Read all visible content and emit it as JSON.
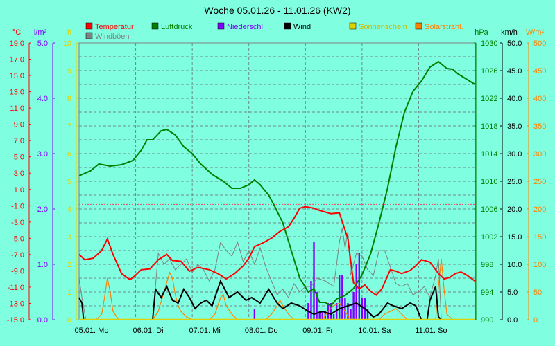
{
  "chart_data": {
    "type": "line",
    "title": "Woche 05.01.26 - 11.01.26 (KW2)",
    "legend": [
      {
        "label": "Temperatur",
        "color": "#ff0000"
      },
      {
        "label": "Luftdruck",
        "color": "#008000"
      },
      {
        "label": "Niederschl.",
        "color": "#8000ff"
      },
      {
        "label": "Wind",
        "color": "#000000"
      },
      {
        "label": "Sonnenschein",
        "color": "#e0d000"
      },
      {
        "label": "Solarstrahl.",
        "color": "#ff8000"
      },
      {
        "label": "Windböen",
        "color": "#808080"
      }
    ],
    "axes": {
      "temperature": {
        "unit": "°C",
        "color": "#ff0000",
        "ylim": [
          -15,
          21
        ],
        "ticks": [
          "19.0",
          "17.0",
          "15.0",
          "13.0",
          "11.0",
          "9.0",
          "7.0",
          "5.0",
          "3.0",
          "1.0",
          "-1.0",
          "-3.0",
          "-5.0",
          "-7.0",
          "-9.0",
          "-11.0",
          "-13.0",
          "-15.0"
        ]
      },
      "precipitation": {
        "unit": "l/m²",
        "color": "#8000ff",
        "ylim": [
          0,
          5
        ],
        "ticks": [
          "5.0",
          "4.0",
          "3.0",
          "2.0",
          "1.0",
          "0.0"
        ]
      },
      "sunshine": {
        "unit": "h",
        "color": "#e0d000",
        "ylim": [
          0,
          10
        ],
        "ticks": [
          "10",
          "9",
          "8",
          "7",
          "6",
          "5",
          "4",
          "3",
          "2",
          "1",
          "0"
        ]
      },
      "pressure": {
        "unit": "hPa",
        "color": "#008000",
        "ylim": [
          990,
          1030
        ],
        "ticks": [
          "1030",
          "1026",
          "1022",
          "1018",
          "1014",
          "1010",
          "1006",
          "1002",
          "998",
          "994",
          "990"
        ]
      },
      "wind": {
        "unit": "km/h",
        "color": "#000000",
        "ylim": [
          0,
          50
        ],
        "ticks": [
          "50.0",
          "45.0",
          "40.0",
          "35.0",
          "30.0",
          "25.0",
          "20.0",
          "15.0",
          "10.0",
          "5.0",
          "0.0"
        ]
      },
      "solar": {
        "unit": "W/m²",
        "color": "#ff8000",
        "ylim": [
          0,
          500
        ],
        "ticks": [
          "500",
          "450",
          "400",
          "350",
          "300",
          "250",
          "200",
          "150",
          "100",
          "50",
          "0"
        ]
      }
    },
    "x_ticks": [
      "05.01. Mo",
      "06.01. Di",
      "07.01. Mi",
      "08.01. Do",
      "09.01. Fr",
      "10.01. Sa",
      "11.01. So"
    ],
    "x_range_days": [
      0,
      7
    ],
    "grid": true,
    "series": {
      "temperature": {
        "x": [
          0,
          0.1,
          0.25,
          0.4,
          0.5,
          0.6,
          0.75,
          0.9,
          1.0,
          1.1,
          1.25,
          1.4,
          1.55,
          1.65,
          1.8,
          1.95,
          2.1,
          2.3,
          2.45,
          2.6,
          2.75,
          2.9,
          3.0,
          3.1,
          3.25,
          3.4,
          3.55,
          3.7,
          3.8,
          3.9,
          4.0,
          4.15,
          4.25,
          4.35,
          4.45,
          4.6,
          4.75,
          4.85,
          4.95,
          5.05,
          5.15,
          5.25,
          5.35,
          5.5,
          5.6,
          5.7,
          5.85,
          5.95,
          6.05,
          6.2,
          6.35,
          6.45,
          6.55,
          6.65,
          6.75,
          6.85,
          7.0
        ],
        "values": [
          -6.5,
          -7.2,
          -7.0,
          -6.0,
          -4.5,
          -6.5,
          -9.0,
          -9.8,
          -9.2,
          -8.5,
          -8.4,
          -7.2,
          -6.5,
          -7.3,
          -7.4,
          -8.7,
          -8.2,
          -8.5,
          -9.0,
          -9.7,
          -9.0,
          -8.0,
          -7.0,
          -5.5,
          -5.0,
          -4.4,
          -3.5,
          -2.9,
          -1.8,
          -0.5,
          -0.3,
          -0.5,
          -0.8,
          -1.0,
          -1.2,
          -1.1,
          -4.5,
          -10.2,
          -11.0,
          -10.5,
          -11.3,
          -11.8,
          -11.0,
          -8.5,
          -8.7,
          -9.0,
          -8.6,
          -8.0,
          -7.2,
          -7.5,
          -9.0,
          -9.7,
          -9.5,
          -9.0,
          -8.8,
          -9.2,
          -10.0
        ]
      },
      "pressure": {
        "x": [
          0,
          0.2,
          0.35,
          0.55,
          0.75,
          0.95,
          1.1,
          1.2,
          1.3,
          1.45,
          1.55,
          1.7,
          1.85,
          2.0,
          2.15,
          2.35,
          2.55,
          2.7,
          2.85,
          3.0,
          3.1,
          3.2,
          3.35,
          3.45,
          3.6,
          3.75,
          3.9,
          4.05,
          4.15,
          4.25,
          4.35,
          4.45,
          4.55,
          4.7,
          4.85,
          5.0,
          5.15,
          5.3,
          5.45,
          5.6,
          5.75,
          5.9,
          6.05,
          6.2,
          6.35,
          6.5,
          6.6,
          6.7,
          6.8,
          6.9,
          7.0
        ],
        "values": [
          1010.8,
          1011.5,
          1012.5,
          1012.2,
          1012.4,
          1013.0,
          1014.5,
          1016.0,
          1016.0,
          1017.3,
          1017.5,
          1016.7,
          1015.0,
          1014.0,
          1012.5,
          1011.0,
          1010.0,
          1009.0,
          1009.0,
          1009.5,
          1010.2,
          1009.5,
          1008.0,
          1006.5,
          1004.0,
          1000.0,
          996.0,
          994.0,
          994.5,
          992.5,
          992.5,
          992.0,
          993.0,
          993.5,
          994.5,
          996.5,
          999.5,
          1004.0,
          1009.0,
          1015.0,
          1020.0,
          1023.0,
          1024.5,
          1026.5,
          1027.3,
          1026.3,
          1026.2,
          1025.5,
          1025.0,
          1024.5,
          1024.0
        ]
      },
      "wind": {
        "x": [
          0,
          0.05,
          0.08,
          0.1,
          1.3,
          1.35,
          1.45,
          1.55,
          1.65,
          1.75,
          1.85,
          1.95,
          2.05,
          2.15,
          2.25,
          2.35,
          2.5,
          2.65,
          2.8,
          2.95,
          3.05,
          3.2,
          3.35,
          3.5,
          3.6,
          3.75,
          3.9,
          4.05,
          4.15,
          4.3,
          4.45,
          4.6,
          4.75,
          4.9,
          5.05,
          5.2,
          5.3,
          5.45,
          5.55,
          5.7,
          5.85,
          5.95,
          6.05,
          6.15,
          6.2,
          6.3,
          6.35,
          6.4
        ],
        "values": [
          4.0,
          3.0,
          0.0,
          0.0,
          0.0,
          5.5,
          4.0,
          6.0,
          3.5,
          3.0,
          5.5,
          4.0,
          2.0,
          3.0,
          3.5,
          2.5,
          7.0,
          4.0,
          5.0,
          3.5,
          4.0,
          3.0,
          5.5,
          3.0,
          2.0,
          3.0,
          2.5,
          1.5,
          1.0,
          1.5,
          1.0,
          2.0,
          2.5,
          3.0,
          2.0,
          0.5,
          1.0,
          3.0,
          2.5,
          2.0,
          3.0,
          2.5,
          0.0,
          0.0,
          3.5,
          6.0,
          0.5,
          0.0
        ]
      },
      "gusts": {
        "x": [
          0,
          0.05,
          0.12,
          1.3,
          1.4,
          1.5,
          1.6,
          1.7,
          1.8,
          1.9,
          2.0,
          2.1,
          2.2,
          2.3,
          2.4,
          2.5,
          2.6,
          2.7,
          2.8,
          2.9,
          3.0,
          3.1,
          3.2,
          3.3,
          3.4,
          3.5,
          3.6,
          3.7,
          3.8,
          3.9,
          4.0,
          4.1,
          4.2,
          4.35,
          4.5,
          4.6,
          4.65,
          4.7,
          4.75,
          4.8,
          4.9,
          5.0,
          5.1,
          5.2,
          5.3,
          5.4,
          5.5,
          5.6,
          5.7,
          5.8,
          5.9,
          6.0,
          6.1,
          6.2,
          6.3,
          6.35,
          6.4
        ],
        "values": [
          7.5,
          4.0,
          0.0,
          0.0,
          12.0,
          10.0,
          11.0,
          9.0,
          10.0,
          11.0,
          8.5,
          10.0,
          9.0,
          7.0,
          9.0,
          14.0,
          12.5,
          11.5,
          14.0,
          10.5,
          12.5,
          10.0,
          13.0,
          9.5,
          7.0,
          4.5,
          5.5,
          4.0,
          6.5,
          5.0,
          6.0,
          6.0,
          7.5,
          7.0,
          6.0,
          14.0,
          16.5,
          13.0,
          16.0,
          8.0,
          12.0,
          11.5,
          9.0,
          8.0,
          12.5,
          12.5,
          9.5,
          6.5,
          6.0,
          6.5,
          4.5,
          5.0,
          6.0,
          4.0,
          8.0,
          11.0,
          0.0
        ]
      },
      "solar": {
        "x": [
          0.3,
          0.4,
          0.45,
          0.5,
          0.55,
          0.6,
          0.7,
          1.3,
          1.4,
          1.5,
          1.6,
          1.65,
          1.7,
          1.75,
          1.8,
          1.9,
          2.0,
          2.3,
          2.4,
          2.5,
          2.55,
          2.6,
          2.7,
          2.8,
          3.3,
          3.4,
          3.5,
          3.55,
          3.6,
          3.7,
          3.8,
          4.3,
          4.4,
          4.5,
          4.6,
          4.7,
          4.8,
          5.3,
          5.4,
          5.5,
          5.6,
          5.7,
          5.8,
          6.3,
          6.35,
          6.4,
          6.45,
          6.5,
          6.6
        ],
        "values": [
          0,
          10,
          40,
          75,
          50,
          15,
          0,
          0,
          15,
          50,
          85,
          75,
          45,
          25,
          15,
          5,
          0,
          0,
          10,
          40,
          45,
          25,
          10,
          0,
          0,
          10,
          25,
          35,
          25,
          10,
          0,
          0,
          15,
          25,
          30,
          15,
          0,
          0,
          10,
          15,
          20,
          10,
          0,
          0,
          60,
          110,
          55,
          10,
          0
        ],
        "note_hidden": false
      },
      "precipitation": {
        "x": [
          3.1,
          4.05,
          4.1,
          4.15,
          4.2,
          4.25,
          4.3,
          4.35,
          4.4,
          4.45,
          4.5,
          4.55,
          4.6,
          4.65,
          4.7,
          4.75,
          4.8,
          4.85,
          4.9,
          4.95,
          5.0,
          5.05,
          5.1
        ],
        "values": [
          0.2,
          0.3,
          0.7,
          1.4,
          0.5,
          0.15,
          0.15,
          0.15,
          0.3,
          0.3,
          0.1,
          0.3,
          0.8,
          0.8,
          0.4,
          0.3,
          0.2,
          0.5,
          1.0,
          1.2,
          0.4,
          0.4,
          0.2
        ]
      },
      "sunshine": {
        "x": [],
        "values": []
      }
    }
  }
}
